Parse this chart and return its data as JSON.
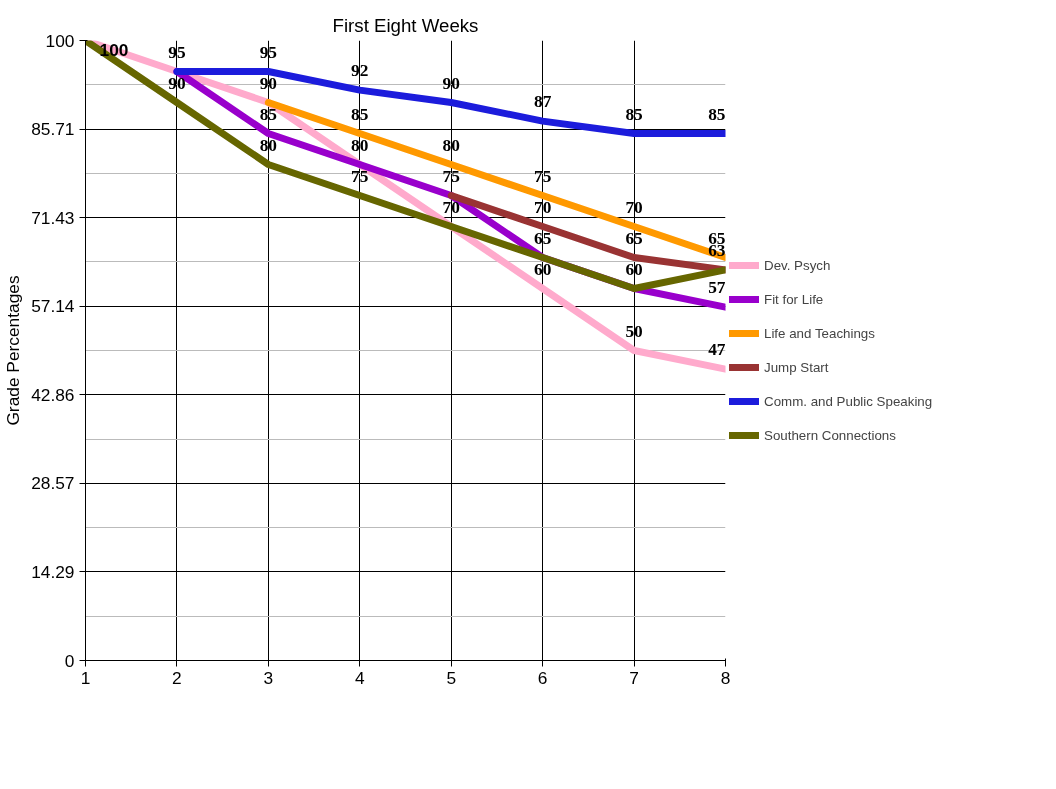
{
  "chart_data": {
    "type": "line",
    "title": "First Eight Weeks",
    "ylabel": "Grade Percentages",
    "x": [
      1,
      2,
      3,
      4,
      5,
      6,
      7,
      8
    ],
    "series": [
      {
        "name": "Dev. Psych",
        "color": "#ffaacc",
        "values": [
          100,
          95,
          90,
          80,
          70,
          60,
          50,
          47
        ],
        "value_labels": [
          "100",
          "95",
          "90",
          "80",
          "70",
          "60",
          "50",
          "47"
        ]
      },
      {
        "name": "Fit for Life",
        "color": "#9900cc",
        "values": [
          null,
          95,
          85,
          80,
          75,
          65,
          60,
          57
        ],
        "value_labels": [
          null,
          null,
          "85",
          null,
          "75",
          "65",
          "60",
          "57"
        ]
      },
      {
        "name": "Life and Teachings",
        "color": "#ff9900",
        "values": [
          null,
          null,
          90,
          85,
          80,
          75,
          70,
          65
        ],
        "value_labels": [
          null,
          null,
          null,
          "85",
          "80",
          "75",
          "70",
          "65"
        ]
      },
      {
        "name": "Jump Start",
        "color": "#993333",
        "values": [
          null,
          null,
          null,
          null,
          75,
          70,
          65,
          63
        ],
        "value_labels": [
          null,
          null,
          null,
          null,
          null,
          "70",
          "65",
          "63"
        ]
      },
      {
        "name": "Comm. and Public Speaking",
        "color": "#1c1cdc",
        "values": [
          null,
          95,
          95,
          92,
          90,
          87,
          85,
          85
        ],
        "value_labels": [
          null,
          null,
          "95",
          "92",
          "90",
          "87",
          "85",
          "85"
        ]
      },
      {
        "name": "Southern Connections",
        "color": "#666600",
        "values": [
          100,
          90,
          80,
          75,
          70,
          65,
          60,
          63
        ],
        "value_labels": [
          null,
          "90",
          "80",
          "75",
          null,
          null,
          null,
          null
        ]
      }
    ],
    "xlim": [
      1,
      8
    ],
    "xticks": [
      1,
      2,
      3,
      4,
      5,
      6,
      7,
      8
    ],
    "ylim": [
      0,
      100
    ],
    "yticks": [
      0,
      14.29,
      28.57,
      42.86,
      57.14,
      71.43,
      85.71,
      100
    ],
    "grid": true,
    "legend": "right",
    "marker": "none",
    "line_style": "solid"
  }
}
